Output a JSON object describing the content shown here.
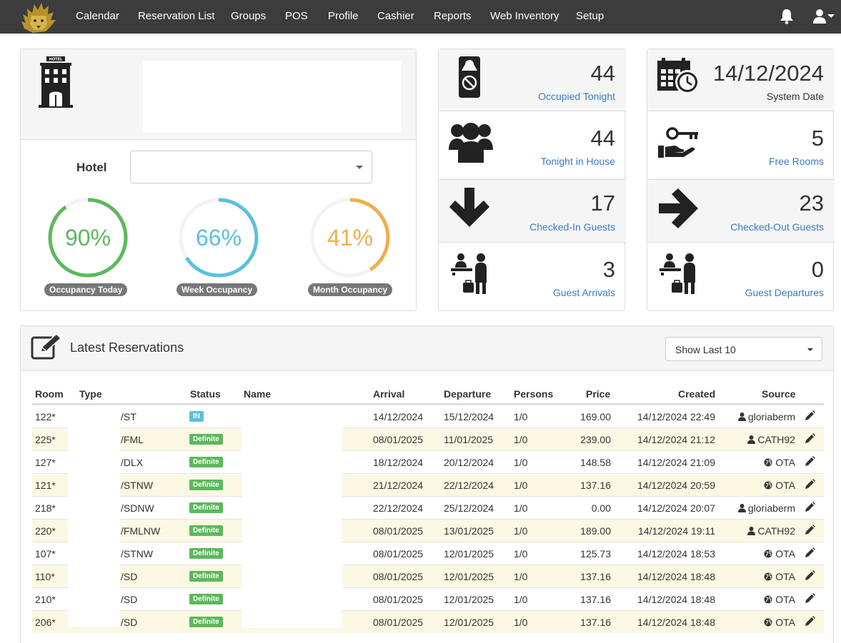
{
  "nav": {
    "items": [
      {
        "label": "Calendar",
        "icon": ""
      },
      {
        "label": "Reservation List",
        "icon": ""
      },
      {
        "label": "Groups",
        "icon": ""
      },
      {
        "label": "POS",
        "icon": ""
      },
      {
        "label": "Profile",
        "icon": ""
      },
      {
        "label": "Cashier",
        "icon": ""
      },
      {
        "label": "Reports",
        "icon": ""
      },
      {
        "label": "Web Inventory",
        "icon": ""
      },
      {
        "label": "Setup",
        "icon": ""
      }
    ],
    "right_icons": [
      "bell-icon",
      "user-icon"
    ],
    "logo": "lion-logo"
  },
  "hotel": {
    "icon_badge": "HOTEL",
    "label": "Hotel",
    "select_value": "",
    "gauges": [
      {
        "value": "90%",
        "fraction": 0.9,
        "label": "Occupancy Today",
        "color": "#5cb85c"
      },
      {
        "value": "66%",
        "fraction": 0.66,
        "label": "Week Occupancy",
        "color": "#5bc0de"
      },
      {
        "value": "41%",
        "fraction": 0.41,
        "label": "Month Occupancy",
        "color": "#f0ad4e"
      }
    ]
  },
  "stats_left": [
    {
      "value": "44",
      "label": "Occupied Tonight",
      "icon": "door-hanger-icon"
    },
    {
      "value": "44",
      "label": "Tonight in House",
      "icon": "users-icon"
    },
    {
      "value": "17",
      "label": "Checked-In Guests",
      "icon": "arrow-down-icon"
    },
    {
      "value": "3",
      "label": "Guest Arrivals",
      "icon": "reception-icon"
    }
  ],
  "stats_right": [
    {
      "value": "14/12/2024",
      "label": "System Date",
      "icon": "calendar-clock-icon"
    },
    {
      "value": "5",
      "label": "Free Rooms",
      "icon": "key-hand-icon"
    },
    {
      "value": "23",
      "label": "Checked-Out Guests",
      "icon": "arrow-right-icon"
    },
    {
      "value": "0",
      "label": "Guest Departures",
      "icon": "reception-icon"
    }
  ],
  "reservations": {
    "title": "Latest Reservations",
    "show_select": "Show Last 10",
    "columns": [
      "Room",
      "Type",
      "Status",
      "Name",
      "Arrival",
      "Departure",
      "Persons",
      "Price",
      "Created",
      "Source"
    ],
    "rows": [
      {
        "room": "122*",
        "type": "/ST",
        "status": "IN",
        "arrival": "14/12/2024",
        "departure": "15/12/2024",
        "persons": "1/0",
        "price": "169.00",
        "created": "14/12/2024 22:49",
        "source": "gloriaberm",
        "source_icon": "user-icon"
      },
      {
        "room": "225*",
        "type": "/FML",
        "status": "Definite",
        "arrival": "08/01/2025",
        "departure": "11/01/2025",
        "persons": "1/0",
        "price": "239.00",
        "created": "14/12/2024 21:12",
        "source": "CATH92",
        "source_icon": "user-icon"
      },
      {
        "room": "127*",
        "type": "/DLX",
        "status": "Definite",
        "arrival": "18/12/2024",
        "departure": "20/12/2024",
        "persons": "1/0",
        "price": "148.58",
        "created": "14/12/2024 21:09",
        "source": "OTA",
        "source_icon": "globe-icon"
      },
      {
        "room": "121*",
        "type": "/STNW",
        "status": "Definite",
        "arrival": "21/12/2024",
        "departure": "22/12/2024",
        "persons": "1/0",
        "price": "137.16",
        "created": "14/12/2024 20:59",
        "source": "OTA",
        "source_icon": "globe-icon"
      },
      {
        "room": "218*",
        "type": "/SDNW",
        "status": "Definite",
        "arrival": "22/12/2024",
        "departure": "25/12/2024",
        "persons": "1/0",
        "price": "0.00",
        "created": "14/12/2024 20:07",
        "source": "gloriaberm",
        "source_icon": "user-icon"
      },
      {
        "room": "220*",
        "type": "/FMLNW",
        "status": "Definite",
        "arrival": "08/01/2025",
        "departure": "13/01/2025",
        "persons": "1/0",
        "price": "189.00",
        "created": "14/12/2024 19:11",
        "source": "CATH92",
        "source_icon": "user-icon"
      },
      {
        "room": "107*",
        "type": "/STNW",
        "status": "Definite",
        "arrival": "08/01/2025",
        "departure": "12/01/2025",
        "persons": "1/0",
        "price": "125.73",
        "created": "14/12/2024 18:53",
        "source": "OTA",
        "source_icon": "globe-icon"
      },
      {
        "room": "110*",
        "type": "/SD",
        "status": "Definite",
        "arrival": "08/01/2025",
        "departure": "12/01/2025",
        "persons": "1/0",
        "price": "137.16",
        "created": "14/12/2024 18:48",
        "source": "OTA",
        "source_icon": "globe-icon"
      },
      {
        "room": "210*",
        "type": "/SD",
        "status": "Definite",
        "arrival": "08/01/2025",
        "departure": "12/01/2025",
        "persons": "1/0",
        "price": "137.16",
        "created": "14/12/2024 18:48",
        "source": "OTA",
        "source_icon": "globe-icon"
      },
      {
        "room": "206*",
        "type": "/SD",
        "status": "Definite",
        "arrival": "08/01/2025",
        "departure": "12/01/2025",
        "persons": "1/0",
        "price": "137.16",
        "created": "14/12/2024 18:48",
        "source": "OTA",
        "source_icon": "globe-icon"
      }
    ]
  }
}
